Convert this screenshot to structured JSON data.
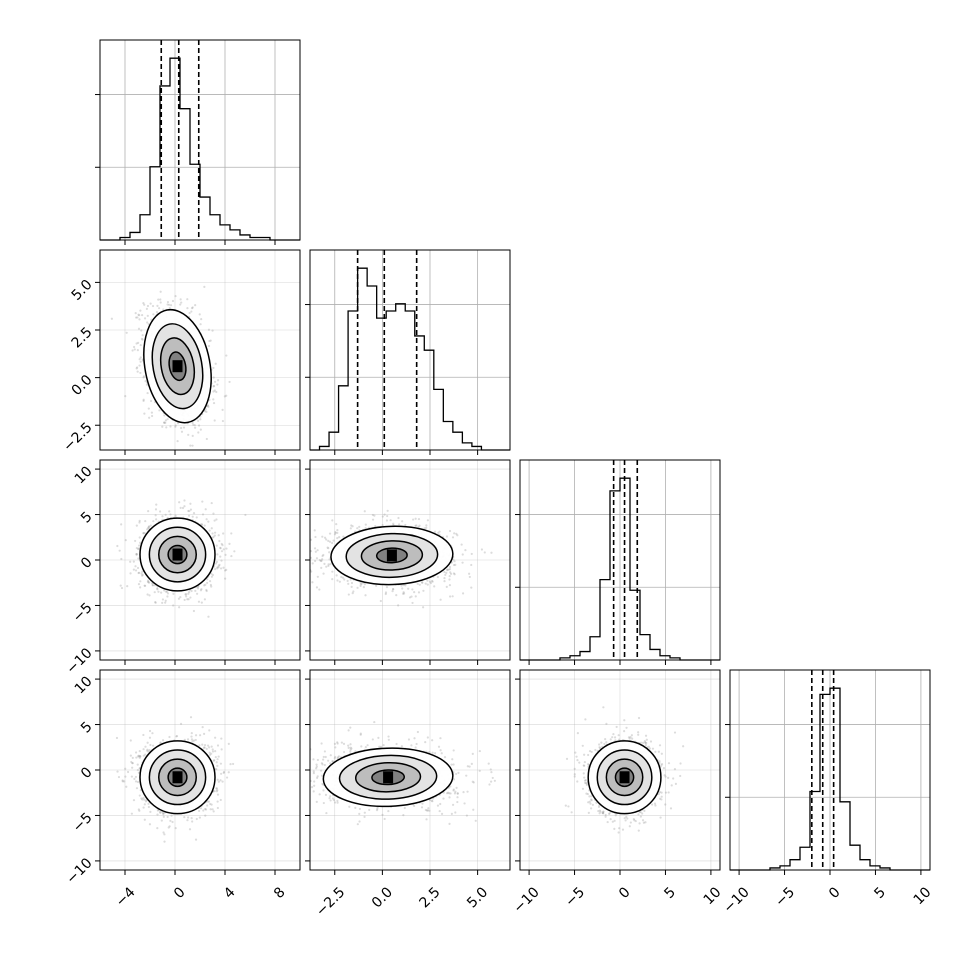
{
  "chart_data": {
    "type": "scatter",
    "subtype": "corner-plot",
    "title": "",
    "grid": true,
    "colors": {
      "points": "#9b9b9b",
      "density": "#000000",
      "hist": "#000000",
      "grid": "#b0b0b0"
    },
    "parameters": [
      {
        "index": 0,
        "range": [
          -6,
          10
        ],
        "ticks": [
          -4,
          0,
          4,
          8
        ],
        "tick_labels": [
          "−4",
          "0",
          "4",
          "8"
        ],
        "quantiles": [
          -1.1,
          0.3,
          1.9
        ],
        "mean": 0.3,
        "sd": 1.3,
        "hist": {
          "edges_start": -6,
          "bin_width": 0.8,
          "counts": [
            0,
            0,
            1,
            3,
            10,
            29,
            61,
            72,
            52,
            30,
            17,
            10,
            6,
            4,
            2,
            1,
            1,
            0,
            0,
            0
          ]
        }
      },
      {
        "index": 1,
        "range": [
          -3.8,
          6.7
        ],
        "ticks": [
          -2.5,
          0.0,
          2.5,
          5.0
        ],
        "tick_labels": [
          "−2.5",
          "0.0",
          "2.5",
          "5.0"
        ],
        "quantiles": [
          -1.3,
          0.1,
          1.8
        ],
        "mean": 0.2,
        "sd": 1.6,
        "hist": {
          "edges_start": -3.8,
          "bin_width": 0.5,
          "counts": [
            0,
            1,
            5,
            18,
            39,
            51,
            46,
            37,
            39,
            41,
            39,
            32,
            28,
            17,
            8,
            5,
            2,
            1,
            0,
            0,
            0
          ]
        }
      },
      {
        "index": 2,
        "range": [
          -11,
          11
        ],
        "ticks": [
          -10,
          -5,
          0,
          5,
          10
        ],
        "tick_labels": [
          "−10",
          "−5",
          "0",
          "5",
          "10"
        ],
        "quantiles": [
          -0.7,
          0.5,
          1.9
        ],
        "mean": 0.5,
        "sd": 2.2,
        "hist": {
          "edges_start": -11,
          "bin_width": 1.1,
          "counts": [
            0,
            0,
            0,
            0,
            1,
            2,
            4,
            11,
            38,
            80,
            86,
            33,
            12,
            5,
            2,
            1,
            0,
            0,
            0,
            0
          ]
        }
      },
      {
        "index": 3,
        "range": [
          -11,
          11
        ],
        "ticks": [
          -10,
          -5,
          0,
          5,
          10
        ],
        "tick_labels": [
          "−10",
          "−5",
          "0",
          "5",
          "10"
        ],
        "quantiles": [
          -2.0,
          -0.8,
          0.4
        ],
        "mean": -0.8,
        "sd": 2.2,
        "hist": {
          "edges_start": -11,
          "bin_width": 1.1,
          "counts": [
            0,
            0,
            0,
            0,
            1,
            2,
            5,
            11,
            38,
            85,
            88,
            33,
            12,
            5,
            2,
            1,
            0,
            0,
            0,
            0
          ]
        }
      }
    ],
    "pairs": [
      {
        "row": 1,
        "col": 0,
        "center": [
          0.2,
          0.6
        ],
        "spread": [
          1.3,
          1.5
        ],
        "corr": -0.3
      },
      {
        "row": 2,
        "col": 0,
        "center": [
          0.2,
          0.6
        ],
        "spread": [
          1.5,
          2.0
        ],
        "corr": 0.0
      },
      {
        "row": 2,
        "col": 1,
        "center": [
          0.5,
          0.5
        ],
        "spread": [
          1.6,
          1.6
        ],
        "corr": -0.05
      },
      {
        "row": 3,
        "col": 0,
        "center": [
          0.2,
          -0.8
        ],
        "spread": [
          1.5,
          2.0
        ],
        "corr": 0.0
      },
      {
        "row": 3,
        "col": 1,
        "center": [
          0.3,
          -0.8
        ],
        "spread": [
          1.7,
          1.6
        ],
        "corr": -0.05
      },
      {
        "row": 3,
        "col": 2,
        "center": [
          0.5,
          -0.8
        ],
        "spread": [
          2.0,
          2.0
        ],
        "corr": 0.0
      }
    ],
    "levels": [
      0.5,
      1.0,
      1.5,
      2.0
    ]
  }
}
